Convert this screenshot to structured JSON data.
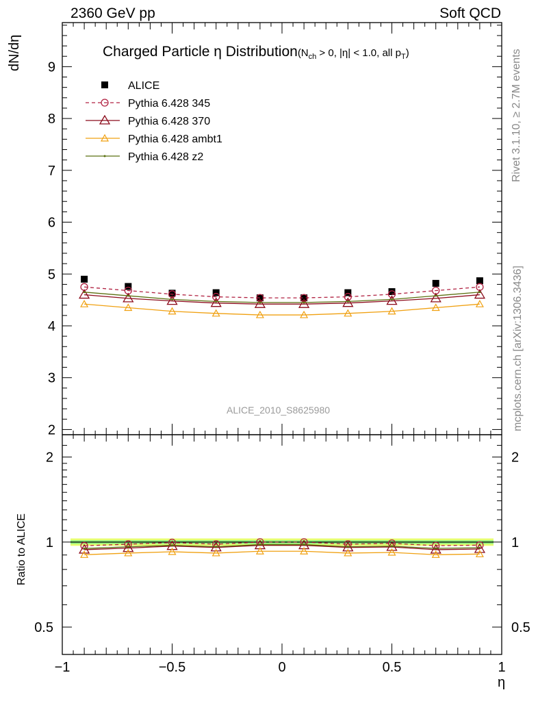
{
  "header": {
    "left": "2360 GeV pp",
    "right": "Soft QCD"
  },
  "side_labels": {
    "rivet": "Rivet 3.1.10, ≥ 2.7M events",
    "mcplots": "mcplots.cern.ch [arXiv:1306.3436]"
  },
  "watermark": "ALICE_2010_S8625980",
  "colors": {
    "alice": "#000000",
    "p345": "#b02040",
    "p370": "#8b0a1a",
    "ambt1": "#f0a010",
    "z2": "#5a7010",
    "band_outer": "#e8ff70",
    "band_inner": "#90ee80"
  },
  "chart_data": [
    {
      "type": "scatter",
      "title_main": "Charged Particle η Distribution",
      "title_sub_1": "(N",
      "title_sub_ch": "ch",
      "title_sub_2": " > 0, |η| < 1.0, all p",
      "title_sub_T": "T",
      "title_sub_3": ")",
      "ylabel": "dN/dη",
      "xlim": [
        -1,
        1
      ],
      "ylim": [
        1.9,
        9.85
      ],
      "yticks": [
        2,
        3,
        4,
        5,
        6,
        7,
        8,
        9
      ],
      "x": [
        -0.9,
        -0.7,
        -0.5,
        -0.3,
        -0.1,
        0.1,
        0.3,
        0.5,
        0.7,
        0.9
      ],
      "legend_position": "top-left",
      "series": [
        {
          "name": "ALICE",
          "values": [
            4.9,
            4.76,
            4.63,
            4.64,
            4.54,
            4.54,
            4.64,
            4.66,
            4.82,
            4.87
          ]
        },
        {
          "name": "Pythia 6.428 345",
          "values": [
            4.75,
            4.68,
            4.61,
            4.56,
            4.54,
            4.54,
            4.56,
            4.61,
            4.68,
            4.75
          ]
        },
        {
          "name": "Pythia 6.428 370",
          "values": [
            4.6,
            4.53,
            4.48,
            4.44,
            4.42,
            4.42,
            4.44,
            4.48,
            4.53,
            4.6
          ]
        },
        {
          "name": "Pythia 6.428 ambt1",
          "values": [
            4.42,
            4.35,
            4.28,
            4.24,
            4.21,
            4.21,
            4.24,
            4.28,
            4.35,
            4.42
          ]
        },
        {
          "name": "Pythia 6.428 z2",
          "values": [
            4.65,
            4.58,
            4.51,
            4.47,
            4.45,
            4.45,
            4.47,
            4.51,
            4.58,
            4.65
          ]
        }
      ]
    },
    {
      "type": "line",
      "ylabel": "Ratio to ALICE",
      "xlabel": "η",
      "xlim": [
        -1,
        1
      ],
      "ylim_log": [
        0.4,
        2.4
      ],
      "yticks": [
        0.5,
        1,
        2
      ],
      "ytick_labels": [
        "0.5",
        "1",
        "2"
      ],
      "xticks": [
        -1,
        -0.5,
        0,
        0.5,
        1
      ],
      "xtick_labels": [
        "−1",
        "−0.5",
        "0",
        "0.5",
        "1"
      ],
      "x": [
        -0.9,
        -0.7,
        -0.5,
        -0.3,
        -0.1,
        0.1,
        0.3,
        0.5,
        0.7,
        0.9
      ],
      "band": {
        "outer": [
          0.97,
          1.03
        ],
        "inner": [
          0.985,
          1.015
        ]
      },
      "series": [
        {
          "name": "Pythia 6.428 345",
          "values": [
            0.97,
            0.983,
            0.996,
            0.983,
            1.0,
            1.0,
            0.983,
            0.99,
            0.971,
            0.975
          ]
        },
        {
          "name": "Pythia 6.428 370",
          "values": [
            0.94,
            0.952,
            0.968,
            0.957,
            0.974,
            0.974,
            0.957,
            0.961,
            0.94,
            0.945
          ]
        },
        {
          "name": "Pythia 6.428 ambt1",
          "values": [
            0.902,
            0.914,
            0.924,
            0.914,
            0.928,
            0.928,
            0.914,
            0.919,
            0.902,
            0.907
          ]
        },
        {
          "name": "Pythia 6.428 z2",
          "values": [
            0.949,
            0.962,
            0.974,
            0.963,
            0.98,
            0.98,
            0.963,
            0.967,
            0.95,
            0.955
          ]
        }
      ]
    }
  ]
}
